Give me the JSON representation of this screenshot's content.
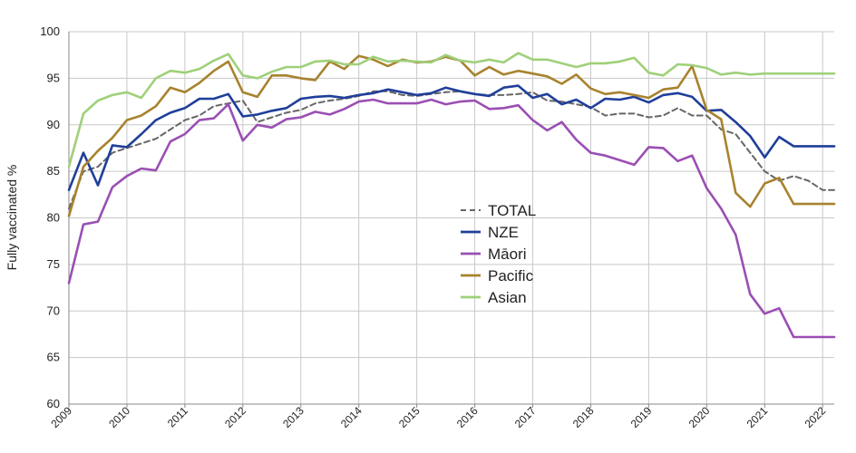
{
  "chart_data": {
    "type": "line",
    "title": "",
    "xlabel": "",
    "ylabel": "Fully vaccinated %",
    "ylim": [
      60,
      100
    ],
    "yticks": [
      60,
      65,
      70,
      75,
      80,
      85,
      90,
      95,
      100
    ],
    "xlim": [
      2009,
      2022.2
    ],
    "xticks": [
      2009,
      2010,
      2011,
      2012,
      2013,
      2014,
      2015,
      2016,
      2017,
      2018,
      2019,
      2020,
      2021,
      2022
    ],
    "xtick_labels": [
      "2009",
      "2010",
      "2011",
      "2012",
      "2013",
      "2014",
      "2015",
      "2016",
      "2017",
      "2018",
      "2019",
      "2020",
      "2021",
      "2022"
    ],
    "legend_position": "center-right",
    "x": [
      2009.0,
      2009.25,
      2009.5,
      2009.75,
      2010.0,
      2010.25,
      2010.5,
      2010.75,
      2011.0,
      2011.25,
      2011.5,
      2011.75,
      2012.0,
      2012.25,
      2012.5,
      2012.75,
      2013.0,
      2013.25,
      2013.5,
      2013.75,
      2014.0,
      2014.25,
      2014.5,
      2014.75,
      2015.0,
      2015.25,
      2015.5,
      2015.75,
      2016.0,
      2016.25,
      2016.5,
      2016.75,
      2017.0,
      2017.25,
      2017.5,
      2017.75,
      2018.0,
      2018.25,
      2018.5,
      2018.75,
      2019.0,
      2019.25,
      2019.5,
      2019.75,
      2020.0,
      2020.25,
      2020.5,
      2020.75,
      2021.0,
      2021.25,
      2021.5,
      2021.75,
      2022.0,
      2022.2
    ],
    "series": [
      {
        "name": "TOTAL",
        "color": "#666666",
        "dash": true,
        "values": [
          81,
          85,
          85.5,
          87,
          87.5,
          88,
          88.5,
          89.5,
          90.5,
          91,
          92,
          92.3,
          92.6,
          90.3,
          90.8,
          91.3,
          91.6,
          92.3,
          92.6,
          92.8,
          93.1,
          93.6,
          93.6,
          93.2,
          93.1,
          93.3,
          93.5,
          93.6,
          93.3,
          93.2,
          93.2,
          93.3,
          93.5,
          92.6,
          92.5,
          92.2,
          91.9,
          91.0,
          91.2,
          91.2,
          90.8,
          91.0,
          91.8,
          91.0,
          91.0,
          89.5,
          89.0,
          87.0,
          85.0,
          84.0,
          84.5,
          84.0,
          83.0,
          83.0
        ]
      },
      {
        "name": "NZE",
        "color": "#1f3f99",
        "dash": false,
        "values": [
          83,
          87,
          83.5,
          87.8,
          87.6,
          89,
          90.5,
          91.3,
          91.8,
          92.8,
          92.8,
          93.3,
          90.9,
          91.1,
          91.5,
          91.8,
          92.8,
          93.0,
          93.1,
          92.9,
          93.2,
          93.4,
          93.8,
          93.5,
          93.2,
          93.4,
          94.0,
          93.6,
          93.3,
          93.1,
          94.0,
          94.2,
          92.9,
          93.3,
          92.2,
          92.7,
          91.8,
          92.8,
          92.7,
          93.0,
          92.4,
          93.2,
          93.4,
          93.0,
          91.5,
          91.6,
          90.3,
          88.8,
          86.5,
          88.7,
          87.7,
          87.7,
          87.7,
          87.7
        ]
      },
      {
        "name": "Māori",
        "color": "#9a4fb3",
        "dash": false,
        "values": [
          73,
          79.3,
          79.6,
          83.3,
          84.5,
          85.3,
          85.1,
          88.2,
          89.0,
          90.5,
          90.7,
          92.2,
          88.3,
          90.0,
          89.7,
          90.6,
          90.8,
          91.4,
          91.1,
          91.7,
          92.5,
          92.7,
          92.3,
          92.3,
          92.3,
          92.7,
          92.2,
          92.5,
          92.6,
          91.7,
          91.8,
          92.1,
          90.5,
          89.4,
          90.3,
          88.4,
          87.0,
          86.7,
          86.2,
          85.7,
          87.6,
          87.5,
          86.1,
          86.7,
          83.2,
          81.0,
          78.2,
          71.8,
          69.7,
          70.3,
          67.2,
          67.2,
          67.2,
          67.2
        ]
      },
      {
        "name": "Pacific",
        "color": "#a8832e",
        "dash": false,
        "values": [
          80.2,
          85.5,
          87.2,
          88.6,
          90.5,
          91.0,
          92.0,
          94.0,
          93.5,
          94.5,
          95.8,
          96.8,
          93.5,
          93.0,
          95.3,
          95.3,
          95.0,
          94.8,
          96.8,
          96.0,
          97.4,
          97.0,
          96.3,
          97.0,
          96.7,
          96.8,
          97.3,
          96.9,
          95.3,
          96.2,
          95.4,
          95.8,
          95.5,
          95.2,
          94.4,
          95.4,
          93.9,
          93.3,
          93.5,
          93.2,
          92.9,
          93.8,
          94.0,
          96.3,
          91.6,
          90.6,
          82.7,
          81.2,
          83.7,
          84.3,
          81.5,
          81.5,
          81.5,
          81.5
        ]
      },
      {
        "name": "Asian",
        "color": "#9fd07a",
        "dash": false,
        "values": [
          85.5,
          91.2,
          92.6,
          93.2,
          93.5,
          92.9,
          95.0,
          95.8,
          95.6,
          96.0,
          96.9,
          97.6,
          95.3,
          95.0,
          95.7,
          96.2,
          96.2,
          96.8,
          96.9,
          96.5,
          96.5,
          97.3,
          96.8,
          96.9,
          96.8,
          96.7,
          97.5,
          96.9,
          96.7,
          97.0,
          96.7,
          97.7,
          97.0,
          97.0,
          96.6,
          96.2,
          96.6,
          96.6,
          96.8,
          97.2,
          95.6,
          95.3,
          96.5,
          96.4,
          96.1,
          95.4,
          95.6,
          95.4,
          95.5,
          95.5,
          95.5,
          95.5,
          95.5,
          95.5
        ]
      }
    ]
  }
}
